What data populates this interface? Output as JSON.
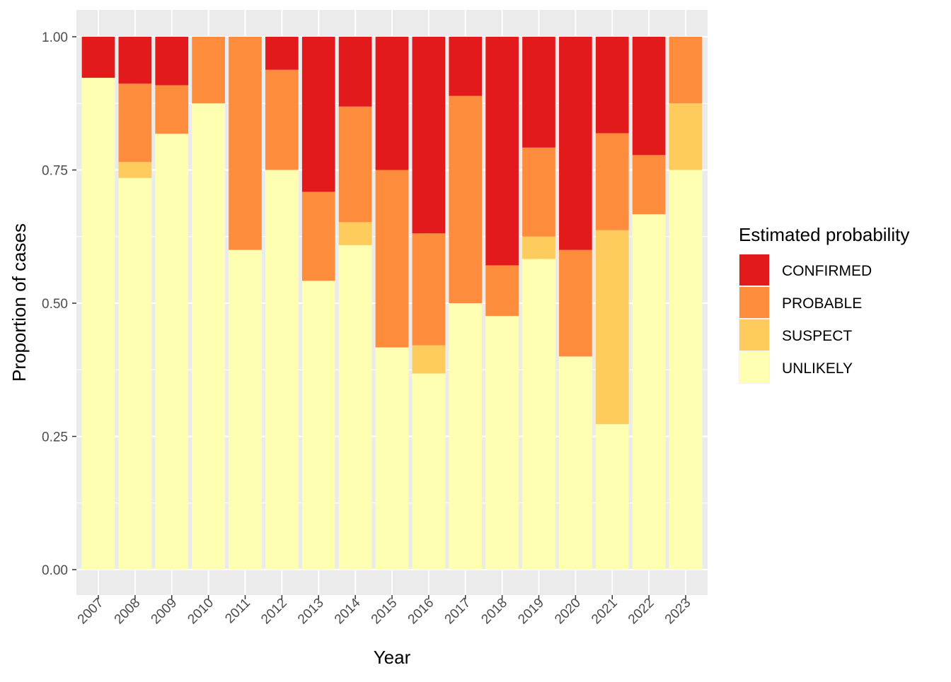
{
  "chart_data": {
    "type": "bar",
    "stacked": true,
    "xlabel": "Year",
    "ylabel": "Proportion of cases",
    "ylim": [
      0,
      1
    ],
    "yticks": [
      "0.00",
      "0.25",
      "0.50",
      "0.75",
      "1.00"
    ],
    "ytick_values": [
      0,
      0.25,
      0.5,
      0.75,
      1
    ],
    "categories": [
      "2007",
      "2008",
      "2009",
      "2010",
      "2011",
      "2012",
      "2013",
      "2014",
      "2015",
      "2016",
      "2017",
      "2018",
      "2019",
      "2020",
      "2021",
      "2022",
      "2023"
    ],
    "legend": {
      "title": "Estimated probability",
      "placement": "right"
    },
    "series": [
      {
        "name": "UNLIKELY",
        "color": "#FFFFB2",
        "values": [
          0.923,
          0.735,
          0.818,
          0.875,
          0.6,
          0.75,
          0.542,
          0.609,
          0.417,
          0.368,
          0.5,
          0.476,
          0.583,
          0.4,
          0.273,
          0.667,
          0.75
        ]
      },
      {
        "name": "SUSPECT",
        "color": "#FECC5C",
        "values": [
          0.0,
          0.03,
          0.0,
          0.0,
          0.0,
          0.0,
          0.0,
          0.043,
          0.0,
          0.053,
          0.0,
          0.0,
          0.042,
          0.0,
          0.364,
          0.0,
          0.125
        ]
      },
      {
        "name": "PROBABLE",
        "color": "#FD8D3C",
        "values": [
          0.0,
          0.147,
          0.091,
          0.125,
          0.4,
          0.188,
          0.167,
          0.217,
          0.333,
          0.21,
          0.389,
          0.095,
          0.167,
          0.2,
          0.182,
          0.111,
          0.125
        ]
      },
      {
        "name": "CONFIRMED",
        "color": "#E31A1C",
        "values": [
          0.077,
          0.088,
          0.091,
          0.0,
          0.0,
          0.062,
          0.291,
          0.131,
          0.25,
          0.369,
          0.111,
          0.429,
          0.208,
          0.4,
          0.181,
          0.222,
          0.0
        ]
      }
    ],
    "legend_order": [
      "CONFIRMED",
      "PROBABLE",
      "SUSPECT",
      "UNLIKELY"
    ],
    "grid": true,
    "panel_background": "#EBEBEB",
    "grid_color": "#FFFFFF"
  }
}
